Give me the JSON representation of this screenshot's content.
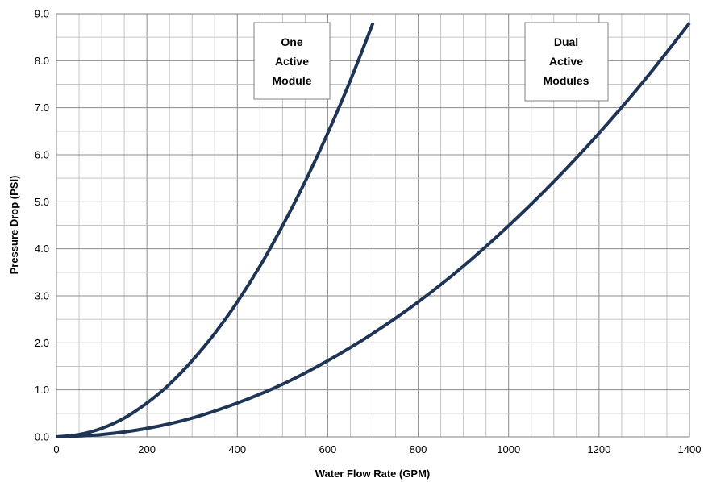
{
  "chart_data": {
    "type": "line",
    "title": "",
    "xlabel": "Water Flow Rate (GPM)",
    "ylabel": "Pressure Drop (PSI)",
    "xlim": [
      0,
      1400
    ],
    "ylim": [
      0,
      9
    ],
    "x_major_ticks": [
      "0",
      "200",
      "400",
      "600",
      "800",
      "1000",
      "1200",
      "1400"
    ],
    "x_major_values": [
      0,
      200,
      400,
      600,
      800,
      1000,
      1200,
      1400
    ],
    "y_major_ticks": [
      "0.0",
      "1.0",
      "2.0",
      "3.0",
      "4.0",
      "5.0",
      "6.0",
      "7.0",
      "8.0",
      "9.0"
    ],
    "y_major_values": [
      0,
      1,
      2,
      3,
      4,
      5,
      6,
      7,
      8,
      9
    ],
    "x_minor_step": 50,
    "y_minor_step": 0.5,
    "grid": true,
    "line_color": "#1f3556",
    "series": [
      {
        "x": [
          0,
          50,
          100,
          150,
          200,
          250,
          300,
          350,
          400,
          450,
          500,
          550,
          600,
          650,
          700
        ],
        "y": [
          0.0,
          0.05,
          0.18,
          0.4,
          0.72,
          1.12,
          1.62,
          2.2,
          2.87,
          3.63,
          4.49,
          5.43,
          6.46,
          7.58,
          8.8
        ]
      },
      {
        "x": [
          0,
          100,
          200,
          300,
          400,
          500,
          600,
          700,
          800,
          900,
          1000,
          1100,
          1200,
          1300,
          1400
        ],
        "y": [
          0.0,
          0.05,
          0.18,
          0.4,
          0.72,
          1.12,
          1.62,
          2.2,
          2.87,
          3.63,
          4.49,
          5.43,
          6.46,
          7.58,
          8.8
        ]
      }
    ],
    "annotations": [
      {
        "lines": [
          "One",
          "Active",
          "Module"
        ]
      },
      {
        "lines": [
          "Dual",
          "Active",
          "Modules"
        ]
      }
    ]
  }
}
